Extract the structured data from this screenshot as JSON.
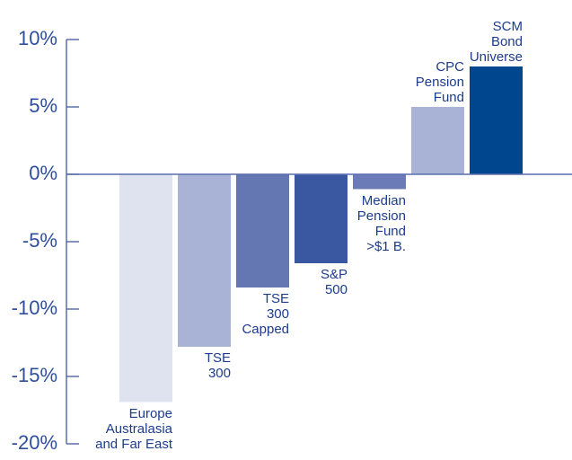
{
  "chart_data": {
    "type": "bar",
    "categories": [
      "Europe\nAustralasia\nand Far East",
      "TSE\n300",
      "TSE\n300\nCapped",
      "S&P\n500",
      "Median\nPension\nFund\n>$1 B.",
      "CPC\nPension\nFund",
      "SCM\nBond\nUniverse"
    ],
    "values": [
      -16.9,
      -12.8,
      -8.4,
      -6.6,
      -1.1,
      5.0,
      8.0
    ],
    "colors": [
      "#dfe3f0",
      "#a8b3d6",
      "#6577b3",
      "#3a58a2",
      "#6a7bb8",
      "#a8b3d6",
      "#00468f"
    ],
    "ylim": [
      -20,
      10
    ],
    "yticks": [
      {
        "value": -20,
        "label": "-20%"
      },
      {
        "value": -15,
        "label": "-15%"
      },
      {
        "value": -10,
        "label": "-10%"
      },
      {
        "value": -5,
        "label": "-5%"
      },
      {
        "value": 0,
        "label": "0%"
      },
      {
        "value": 5,
        "label": "5%"
      },
      {
        "value": 10,
        "label": "10%"
      }
    ]
  }
}
